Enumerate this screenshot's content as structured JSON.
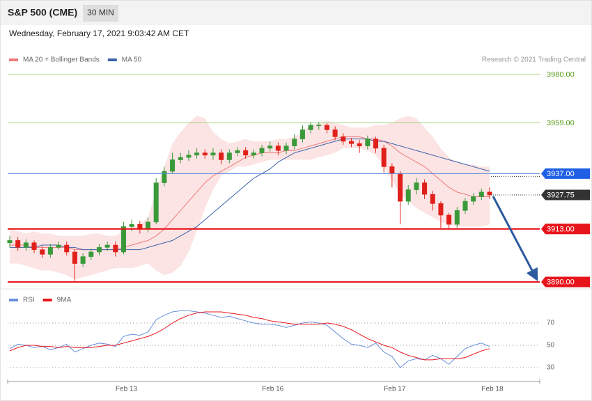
{
  "header": {
    "title": "S&P 500 (CME)",
    "interval": "30 MIN",
    "timestamp": "Wednesday, February 17, 2021 9:03:42 AM CET",
    "credit": "Research © 2021 Trading Central"
  },
  "chart_data": [
    {
      "type": "candlestick",
      "up_color": "#3a9a3a",
      "down_color": "#e0201b",
      "ylim": [
        3888.5,
        3983.6
      ],
      "open": [
        3907,
        3908,
        3905,
        3907,
        3904,
        3902,
        3905,
        3906,
        3903,
        3898,
        3901,
        3903,
        3905,
        3906,
        3903,
        3914,
        3915,
        3913,
        3916,
        3933,
        3938,
        3943,
        3944,
        3945,
        3946,
        3945,
        3946,
        3943,
        3946,
        3947,
        3945,
        3946,
        3948,
        3949,
        3947,
        3949,
        3952,
        3956,
        3958,
        3958,
        3956,
        3953,
        3951,
        3950,
        3949,
        3952,
        3948,
        3940,
        3937,
        3925,
        3930,
        3933,
        3928,
        3924,
        3919,
        3915,
        3921,
        3925,
        3927,
        3929
      ],
      "high": [
        3910,
        3909.5,
        3908.5,
        3908,
        3905.5,
        3906.5,
        3907.5,
        3907.5,
        3904,
        3902.5,
        3904.5,
        3906.5,
        3907.5,
        3907.5,
        3916,
        3917,
        3916.5,
        3918,
        3935,
        3940,
        3946,
        3946,
        3947,
        3948,
        3947.5,
        3948,
        3947.5,
        3947.5,
        3948.5,
        3948.5,
        3947.5,
        3949.5,
        3951,
        3950.5,
        3950.5,
        3954,
        3958,
        3959.5,
        3959.5,
        3959,
        3957.5,
        3954.5,
        3952.5,
        3951.5,
        3953.5,
        3953,
        3949.5,
        3941.5,
        3938,
        3932,
        3935,
        3934.5,
        3929.5,
        3925,
        3920,
        3922.5,
        3926.5,
        3928.5,
        3930.5,
        3931
      ],
      "low": [
        3905,
        3903.5,
        3903.5,
        3902.5,
        3900.5,
        3900.5,
        3904,
        3901.5,
        3890.5,
        3896.5,
        3899.5,
        3901.5,
        3903.5,
        3901,
        3902,
        3912,
        3911,
        3911.5,
        3915,
        3931.5,
        3937,
        3941.5,
        3942.5,
        3943.5,
        3943.5,
        3943,
        3941,
        3941.5,
        3944.5,
        3943.5,
        3943.5,
        3944.5,
        3946.5,
        3945,
        3945.5,
        3947.5,
        3950.5,
        3954.5,
        3956,
        3954.5,
        3951.5,
        3949.5,
        3948.5,
        3946,
        3947.5,
        3946,
        3937.5,
        3931,
        3915,
        3923.5,
        3928,
        3926,
        3921,
        3913.5,
        3913,
        3913.5,
        3919.5,
        3923.5,
        3925.5,
        3926
      ],
      "close": [
        3908,
        3905,
        3907,
        3904,
        3902,
        3905,
        3906,
        3903,
        3898,
        3901,
        3903,
        3905,
        3906,
        3903,
        3914,
        3915,
        3913,
        3916,
        3933,
        3938,
        3943,
        3944,
        3945,
        3946,
        3945,
        3946,
        3943,
        3946,
        3947,
        3945,
        3946,
        3948,
        3949,
        3947,
        3949,
        3952,
        3956,
        3958,
        3958,
        3956,
        3953,
        3951,
        3950,
        3949,
        3952,
        3948,
        3940,
        3937,
        3925,
        3930,
        3933,
        3928,
        3924,
        3919,
        3915,
        3921,
        3925,
        3927,
        3929,
        3927.75
      ],
      "series": [
        {
          "name": "MA 20 + Bollinger Bands",
          "color": "#f07a7a",
          "values": [
            3906,
            3906,
            3906,
            3905,
            3905,
            3905,
            3905,
            3905,
            3904,
            3904,
            3904,
            3904,
            3904,
            3904,
            3905,
            3906,
            3907,
            3908,
            3910,
            3913,
            3917,
            3921,
            3925,
            3929,
            3933,
            3936,
            3938,
            3940,
            3942,
            3944,
            3945,
            3946,
            3946,
            3946,
            3947,
            3947,
            3948,
            3949,
            3950,
            3951,
            3952,
            3953,
            3953,
            3953,
            3952,
            3952,
            3951,
            3949,
            3946,
            3944,
            3942,
            3940,
            3937,
            3934,
            3931,
            3929,
            3928,
            3927,
            3927,
            3927
          ],
          "upper": [
            3913,
            3912,
            3911,
            3912,
            3911,
            3911,
            3910,
            3910,
            3910,
            3910,
            3911,
            3911,
            3910,
            3910,
            3912,
            3914,
            3915,
            3918,
            3930,
            3940,
            3950,
            3955,
            3959,
            3962,
            3961,
            3955,
            3952,
            3950,
            3951,
            3952,
            3951,
            3951,
            3951,
            3952,
            3952,
            3953,
            3955,
            3958,
            3959,
            3960,
            3959,
            3958,
            3957,
            3957,
            3957,
            3958,
            3958,
            3959,
            3961,
            3962,
            3961,
            3957,
            3953,
            3948,
            3944,
            3942,
            3941,
            3941,
            3940,
            3940
          ],
          "lower": [
            3898,
            3898,
            3897,
            3896,
            3895,
            3895,
            3894,
            3893,
            3891,
            3892,
            3893,
            3894,
            3895,
            3896,
            3896,
            3896,
            3897,
            3898,
            3895,
            3893,
            3894,
            3897,
            3903,
            3912,
            3922,
            3930,
            3936,
            3938,
            3940,
            3940,
            3941,
            3942,
            3943,
            3943,
            3943,
            3943,
            3943,
            3943,
            3944,
            3945,
            3946,
            3948,
            3948,
            3948,
            3947,
            3945,
            3940,
            3934,
            3928,
            3925,
            3922,
            3920,
            3918,
            3916,
            3915,
            3914,
            3914,
            3914,
            3914,
            3915
          ]
        },
        {
          "name": "MA 50",
          "color": "#3a62a8",
          "values": [
            3905,
            3905,
            3905,
            3905,
            3906,
            3906,
            3906,
            3905,
            3905,
            3904,
            3904,
            3904,
            3904,
            3904,
            3904,
            3904,
            3904,
            3905,
            3906,
            3907,
            3908,
            3910,
            3912,
            3914,
            3917,
            3920,
            3923,
            3926,
            3929,
            3932,
            3935,
            3937,
            3939,
            3942,
            3944,
            3946,
            3947,
            3948,
            3949,
            3950,
            3951,
            3952,
            3952,
            3952,
            3952,
            3951,
            3951,
            3950,
            3949,
            3948,
            3947,
            3946,
            3945,
            3944,
            3943,
            3942,
            3941,
            3940,
            3939,
            3938
          ]
        }
      ],
      "levels": {
        "values": [
          3980,
          3959,
          3937,
          3927.75,
          3913,
          3890
        ],
        "value_labels": [
          "3980.00",
          "3959.00",
          "3937.00",
          "3927.75",
          "3913.00",
          "3890.00"
        ],
        "line_colors": [
          "#9fd27a",
          "#9fd27a",
          "#5a88d8",
          "#333333",
          "#e8141b",
          "#e8141b"
        ],
        "label_fills": [
          null,
          null,
          "#1f5fe6",
          "#333333",
          "#e8141b",
          "#e8141b"
        ],
        "label_colors": [
          "#5a9a1a",
          "#5a9a1a",
          "#ffffff",
          "#ffffff",
          "#ffffff",
          "#ffffff"
        ],
        "line_widths": [
          1,
          1,
          1,
          1,
          2,
          2
        ],
        "dash": [
          false,
          false,
          false,
          true,
          false,
          false
        ]
      }
    },
    {
      "type": "line",
      "categories": [
        null,
        null,
        null,
        null,
        null,
        null,
        null,
        null,
        null,
        null,
        null,
        null,
        null,
        null,
        "Feb 13",
        null,
        null,
        null,
        null,
        null,
        null,
        null,
        null,
        null,
        null,
        null,
        null,
        null,
        null,
        null,
        null,
        null,
        "Feb 16",
        null,
        null,
        null,
        null,
        null,
        null,
        null,
        null,
        null,
        null,
        null,
        null,
        null,
        null,
        "Feb 17",
        null,
        null,
        null,
        null,
        null,
        null,
        null,
        null,
        null,
        null,
        null,
        "Feb 18"
      ],
      "ylim": [
        19.4,
        85
      ],
      "yticks": [
        30,
        50,
        70
      ],
      "grid": true,
      "series": [
        {
          "name": "RSI",
          "color": "#6b8fdc",
          "values": [
            47,
            51,
            50,
            48,
            49,
            46,
            48,
            51,
            44,
            47,
            50,
            52,
            51,
            49,
            58,
            60,
            59,
            62,
            73,
            77,
            80,
            81,
            81,
            80,
            79,
            77,
            75,
            76,
            74,
            72,
            70,
            69,
            69,
            68,
            66,
            68,
            70,
            71,
            70,
            68,
            62,
            56,
            51,
            50,
            48,
            52,
            44,
            40,
            30,
            36,
            38,
            37,
            41,
            38,
            33,
            40,
            47,
            50,
            52,
            49
          ]
        },
        {
          "name": "9MA",
          "color": "#e8141b",
          "values": [
            45,
            48,
            50,
            50,
            49,
            49,
            48,
            49,
            48,
            48,
            48,
            49,
            50,
            50,
            52,
            54,
            56,
            58,
            61,
            65,
            70,
            74,
            77,
            79,
            80,
            80,
            80,
            79,
            78,
            77,
            75,
            74,
            72,
            71,
            70,
            69,
            69,
            69,
            69,
            70,
            69,
            67,
            64,
            60,
            56,
            53,
            50,
            48,
            44,
            41,
            39,
            37,
            37,
            38,
            38,
            38,
            39,
            42,
            45,
            47
          ]
        }
      ]
    }
  ]
}
